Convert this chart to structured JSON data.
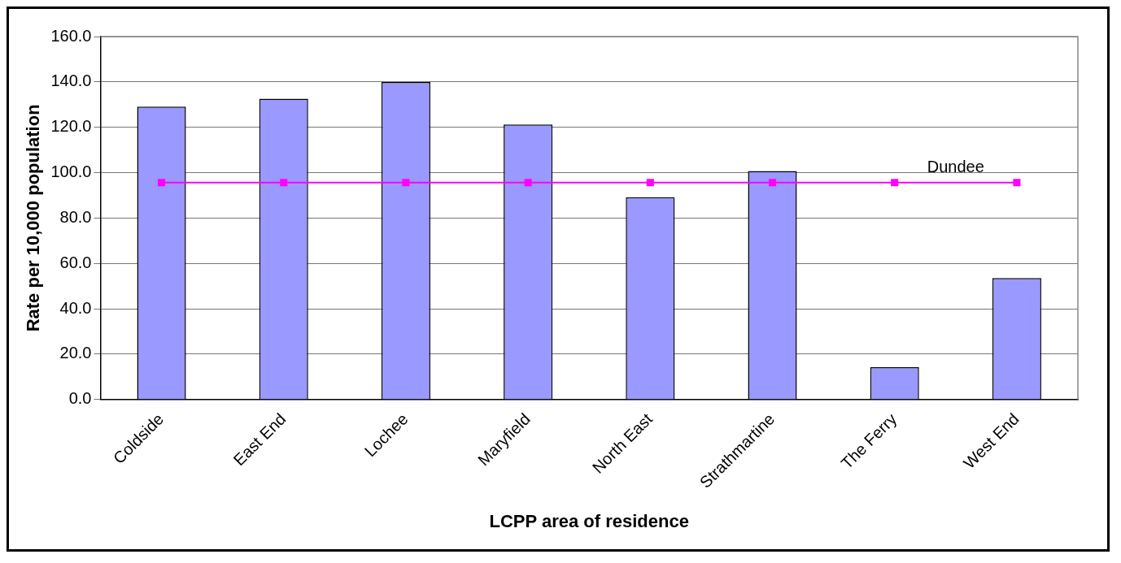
{
  "chart_data": {
    "type": "bar",
    "xlabel": "LCPP area of residence",
    "ylabel": "Rate per 10,000 population",
    "categories": [
      "Coldside",
      "East End",
      "Lochee",
      "Maryfield",
      "North East",
      "Strathmartine",
      "The Ferry",
      "West End"
    ],
    "series": [
      {
        "color": "#9999ff",
        "values": [
          129.1,
          132.6,
          139.9,
          121.2,
          89.2,
          100.7,
          14.2,
          53.5
        ]
      },
      {
        "type": "line",
        "name": "Dundee",
        "color": "#ff00ff",
        "marker": "square",
        "values": [
          95.6,
          95.6,
          95.6,
          95.6,
          95.6,
          95.6,
          95.6,
          95.6
        ]
      }
    ],
    "ylim": [
      0,
      160
    ],
    "yticks": [
      {
        "value": 0,
        "label": "0.0"
      },
      {
        "value": 20,
        "label": "20.0"
      },
      {
        "value": 40,
        "label": "40.0"
      },
      {
        "value": 60,
        "label": "60.0"
      },
      {
        "value": 80,
        "label": "80.0"
      },
      {
        "value": 100,
        "label": "100.0"
      },
      {
        "value": 120,
        "label": "120.0"
      },
      {
        "value": 140,
        "label": "140.0"
      },
      {
        "value": 160,
        "label": "160.0"
      }
    ],
    "grid": "y",
    "legend": false
  }
}
